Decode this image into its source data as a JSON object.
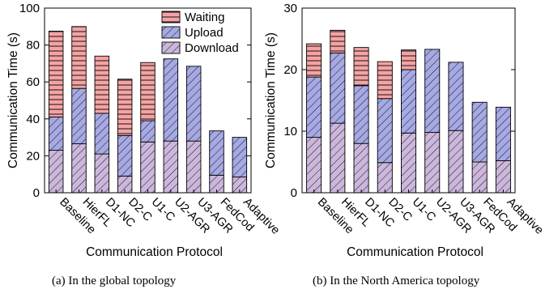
{
  "colors": {
    "waiting": "#f4a3a3",
    "upload": "#a7a9e4",
    "download": "#ccb7dc",
    "edge": "#000000"
  },
  "legend": [
    "Waiting",
    "Upload",
    "Download"
  ],
  "captions": [
    "(a) In the global topology",
    "(b) In the North America topology"
  ],
  "chart_data": [
    {
      "type": "bar",
      "stacked": true,
      "xlabel": "Communication Protocol",
      "ylabel": "Communication Time (s)",
      "ylim": [
        0,
        100
      ],
      "yticks": [
        0,
        20,
        40,
        60,
        80,
        100
      ],
      "legend_position": "top-right",
      "categories": [
        "Baseline",
        "HierFL",
        "D1-NC",
        "D2-C",
        "U1-C",
        "U2-AGR",
        "U3-AGR",
        "FedCod",
        "Adaptive"
      ],
      "series": [
        {
          "name": "Download",
          "values": [
            23,
            26.5,
            21,
            9,
            27.5,
            28,
            28,
            9.5,
            8.5
          ]
        },
        {
          "name": "Upload",
          "values": [
            18,
            30,
            22,
            22,
            11.5,
            44.5,
            40.5,
            24,
            21.5
          ]
        },
        {
          "name": "Waiting",
          "values": [
            46.5,
            33.5,
            31,
            30.5,
            31.5,
            0,
            0,
            0,
            0
          ]
        }
      ]
    },
    {
      "type": "bar",
      "stacked": true,
      "xlabel": "Communication Protocol",
      "ylabel": "Communication Time (s)",
      "ylim": [
        0,
        30
      ],
      "yticks": [
        0,
        10,
        20,
        30
      ],
      "categories": [
        "Baseline",
        "HierFL",
        "D1-NC",
        "D2-C",
        "U1-C",
        "U2-AGR",
        "U3-AGR",
        "FedCod",
        "Adaptive"
      ],
      "series": [
        {
          "name": "Download",
          "values": [
            9,
            11.3,
            8,
            4.9,
            9.7,
            9.8,
            10.1,
            5,
            5.2
          ]
        },
        {
          "name": "Upload",
          "values": [
            9.8,
            11.4,
            9.4,
            10.4,
            10.3,
            13.5,
            11.1,
            9.7,
            8.7
          ]
        },
        {
          "name": "Waiting",
          "values": [
            5.4,
            3.7,
            6.2,
            6,
            3.2,
            0,
            0,
            0,
            0
          ]
        }
      ]
    }
  ]
}
